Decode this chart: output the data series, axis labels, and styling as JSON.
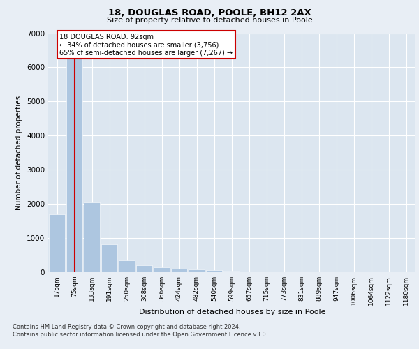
{
  "title_line1": "18, DOUGLAS ROAD, POOLE, BH12 2AX",
  "title_line2": "Size of property relative to detached houses in Poole",
  "xlabel": "Distribution of detached houses by size in Poole",
  "ylabel": "Number of detached properties",
  "categories": [
    "17sqm",
    "75sqm",
    "133sqm",
    "191sqm",
    "250sqm",
    "308sqm",
    "366sqm",
    "424sqm",
    "482sqm",
    "540sqm",
    "599sqm",
    "657sqm",
    "715sqm",
    "773sqm",
    "831sqm",
    "889sqm",
    "947sqm",
    "1006sqm",
    "1064sqm",
    "1122sqm",
    "1180sqm"
  ],
  "values": [
    1700,
    6350,
    2050,
    820,
    340,
    200,
    140,
    110,
    80,
    55,
    40,
    0,
    30,
    0,
    0,
    0,
    0,
    0,
    0,
    0,
    0
  ],
  "bar_color": "#adc6e0",
  "property_line_x": 1,
  "annotation_text": "18 DOUGLAS ROAD: 92sqm\n← 34% of detached houses are smaller (3,756)\n65% of semi-detached houses are larger (7,267) →",
  "annotation_box_color": "#ffffff",
  "annotation_box_edge_color": "#cc0000",
  "property_line_color": "#cc0000",
  "footer_line1": "Contains HM Land Registry data © Crown copyright and database right 2024.",
  "footer_line2": "Contains public sector information licensed under the Open Government Licence v3.0.",
  "bg_color": "#e8eef5",
  "plot_bg_color": "#dce6f0",
  "ylim": [
    0,
    7000
  ],
  "yticks": [
    0,
    1000,
    2000,
    3000,
    4000,
    5000,
    6000,
    7000
  ]
}
